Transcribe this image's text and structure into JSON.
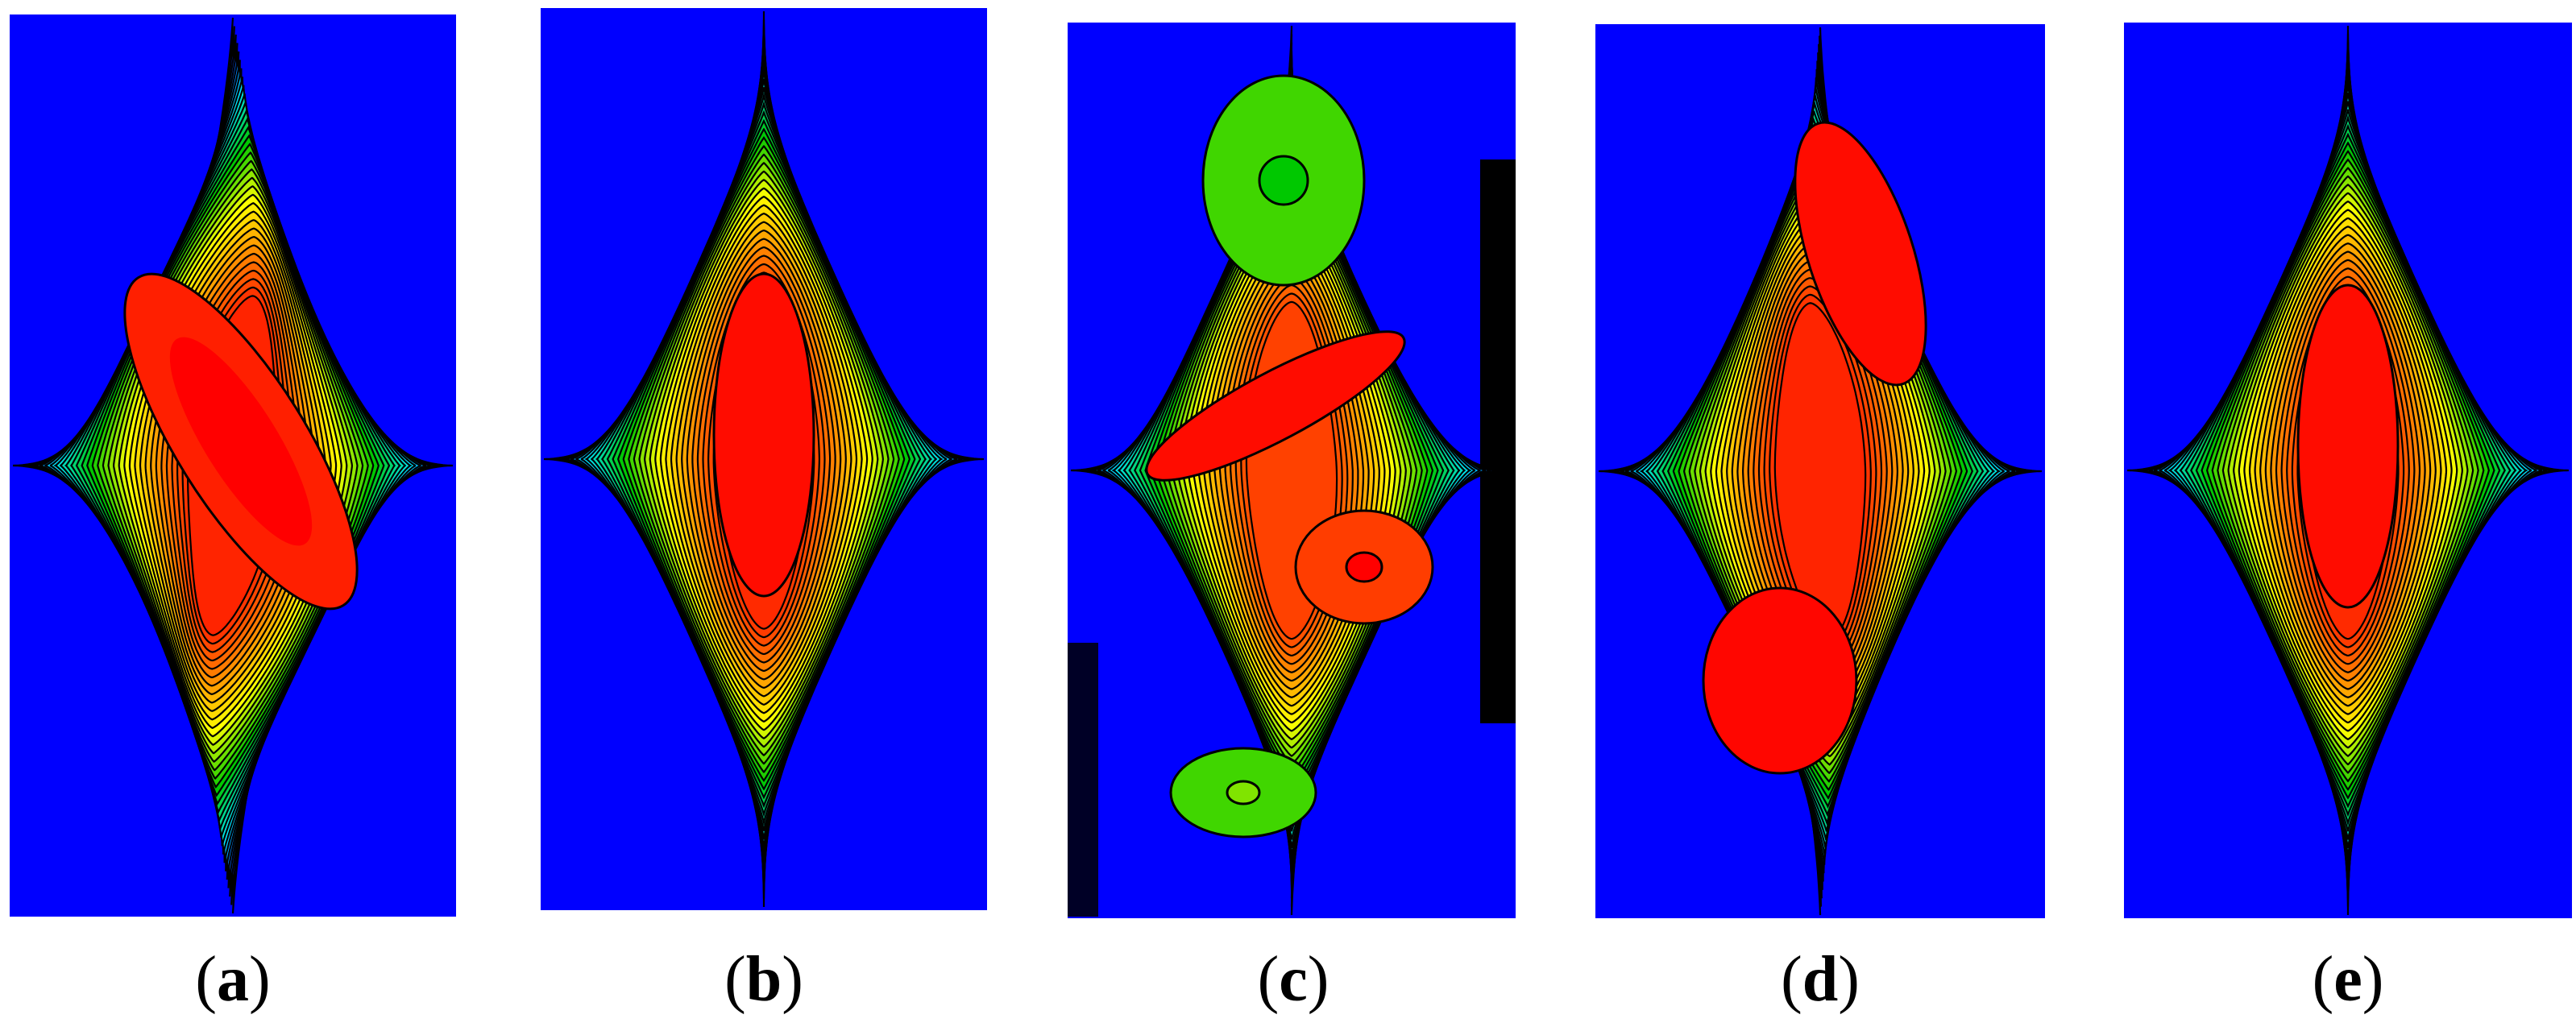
{
  "figure": {
    "colormap": [
      "#0000ff",
      "#00e5ff",
      "#00c800",
      "#ffff00",
      "#ff7a00",
      "#ff0000"
    ],
    "contour_color": "#000000",
    "panels": [
      {
        "id": "a",
        "label": "a",
        "pattern": "s-shaped-single-cell",
        "core_level": 0.97
      },
      {
        "id": "b",
        "label": "b",
        "pattern": "single-elliptic-cell",
        "core_level": 0.96
      },
      {
        "id": "c",
        "label": "c",
        "pattern": "multi-cell-chaotic",
        "core_level": 0.92
      },
      {
        "id": "d",
        "label": "d",
        "pattern": "two-core-cell",
        "core_level": 0.97
      },
      {
        "id": "e",
        "label": "e",
        "pattern": "single-elliptic-cell",
        "core_level": 0.96
      }
    ]
  }
}
